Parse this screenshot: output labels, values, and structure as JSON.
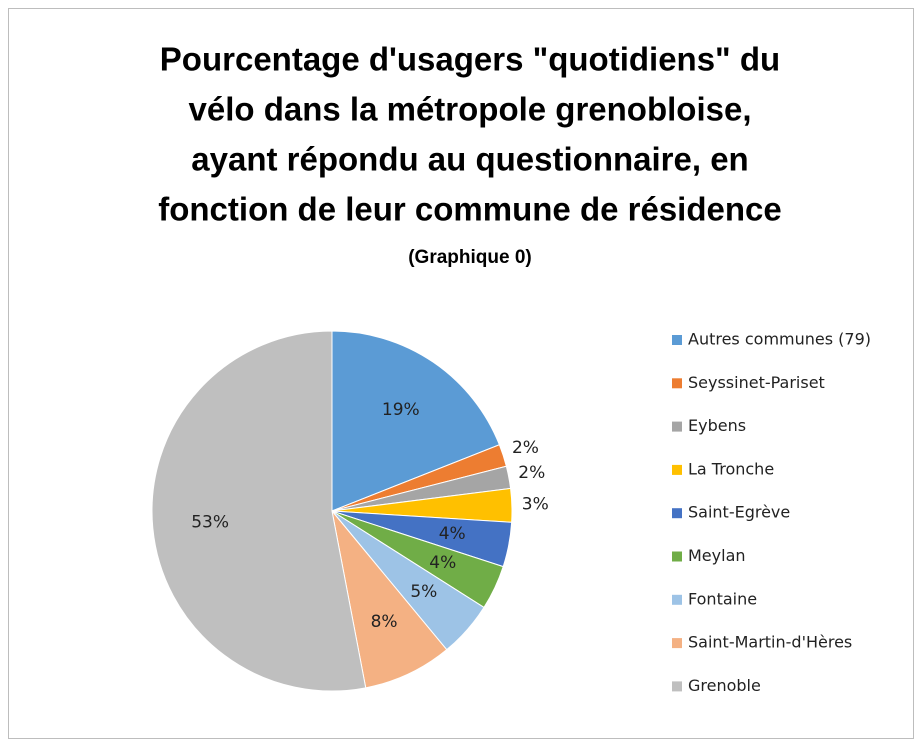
{
  "chart_data": {
    "type": "pie",
    "title": [
      "Pourcentage d'usagers \"quotidiens\" du",
      "vélo dans la métropole grenobloise,",
      "ayant répondu au questionnaire, en",
      "fonction de leur commune de résidence"
    ],
    "subtitle": "(Graphique 0)",
    "categories": [
      "Autres communes (79)",
      "Seyssinet-Pariset",
      "Eybens",
      "La Tronche",
      "Saint-Egrève",
      "Meylan",
      "Fontaine",
      "Saint-Martin-d'Hères",
      "Grenoble"
    ],
    "values": [
      19,
      2,
      2,
      3,
      4,
      4,
      5,
      8,
      53
    ],
    "value_labels": [
      "19%",
      "2%",
      "2%",
      "3%",
      "4%",
      "4%",
      "5%",
      "8%",
      "53%"
    ],
    "colors": [
      "#5b9bd5",
      "#ed7d31",
      "#a5a5a5",
      "#ffc000",
      "#4472c4",
      "#70ad47",
      "#9dc3e6",
      "#f4b183",
      "#bfbfbf"
    ],
    "legend": "right"
  }
}
